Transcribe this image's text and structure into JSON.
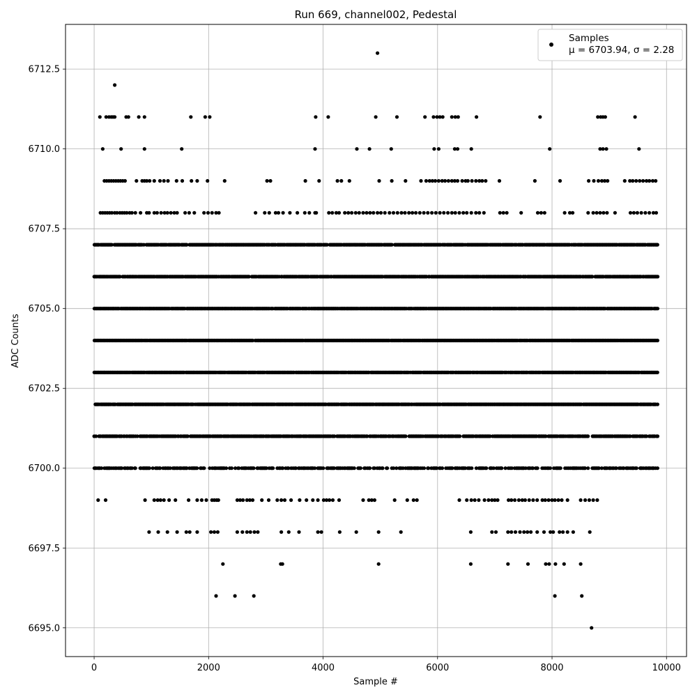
{
  "chart_data": {
    "type": "scatter",
    "title": "Run 669, channel002, Pedestal",
    "xlabel": "Sample #",
    "ylabel": "ADC Counts",
    "xlim": [
      -500,
      10350
    ],
    "ylim": [
      6694.1,
      6713.9
    ],
    "xticks": [
      0,
      2000,
      4000,
      6000,
      8000,
      10000
    ],
    "xtick_labels": [
      "0",
      "2000",
      "4000",
      "6000",
      "8000",
      "10000"
    ],
    "yticks": [
      6695.0,
      6697.5,
      6700.0,
      6702.5,
      6705.0,
      6707.5,
      6710.0,
      6712.5
    ],
    "ytick_labels": [
      "6695.0",
      "6697.5",
      "6700.0",
      "6702.5",
      "6705.0",
      "6707.5",
      "6710.0",
      "6712.5"
    ],
    "grid": true,
    "legend_position": "top-right",
    "legend": {
      "label": "Samples",
      "stats": "μ = 6703.94, σ = 2.28"
    },
    "series": [
      {
        "name": "Samples",
        "color": "#000000",
        "x_range": [
          0,
          9850
        ],
        "n_samples": 9850,
        "points_by_level": [
          {
            "y": 6713,
            "x": [
              4950
            ]
          },
          {
            "y": 6712,
            "x": [
              360
            ]
          },
          {
            "y": 6711,
            "x": [
              100,
              210,
              260,
              300,
              330,
              360,
              560,
              600,
              780,
              880,
              1690,
              1940,
              2020,
              3870,
              4090,
              4920,
              5290,
              5780,
              5930,
              5990,
              6040,
              6090,
              6250,
              6310,
              6360,
              6680,
              7790,
              8800,
              8850,
              8890,
              8930,
              9450
            ]
          },
          {
            "y": 6710,
            "x": [
              150,
              470,
              880,
              1530,
              3860,
              4590,
              4810,
              5190,
              5940,
              6020,
              6300,
              6350,
              6590,
              7960,
              8840,
              8890,
              8950,
              9520
            ]
          },
          {
            "y": 6709,
            "x": [
              180,
              220,
              260,
              300,
              340,
              380,
              420,
              460,
              500,
              540,
              740,
              840,
              880,
              920,
              970,
              1050,
              1150,
              1220,
              1290,
              1440,
              1540,
              1700,
              1800,
              1980,
              2280,
              3020,
              3080,
              3690,
              3930,
              4250,
              4320,
              4460,
              4980,
              5200,
              5440,
              5710,
              5800,
              5860,
              5910,
              5960,
              6020,
              6080,
              6130,
              6190,
              6250,
              6300,
              6350,
              6430,
              6490,
              6530,
              6600,
              6670,
              6730,
              6780,
              6840,
              7080,
              7700,
              8140,
              8640,
              8730,
              8810,
              8870,
              8920,
              8970,
              9270,
              9360,
              9410,
              9470,
              9530,
              9590,
              9650,
              9700,
              9760,
              9810
            ]
          },
          {
            "y": 6708,
            "x": [
              110,
              150,
              190,
              230,
              270,
              310,
              360,
              400,
              450,
              490,
              530,
              570,
              620,
              660,
              720,
              810,
              920,
              960,
              1050,
              1100,
              1170,
              1230,
              1280,
              1340,
              1400,
              1450,
              1590,
              1660,
              1750,
              1920,
              1990,
              2060,
              2130,
              2180,
              2820,
              2980,
              3060,
              3170,
              3220,
              3300,
              3420,
              3550,
              3680,
              3760,
              3860,
              3880,
              4100,
              4160,
              4230,
              4280,
              4380,
              4440,
              4500,
              4570,
              4630,
              4700,
              4760,
              4820,
              4880,
              4950,
              5010,
              5080,
              5160,
              5230,
              5300,
              5370,
              5430,
              5500,
              5560,
              5620,
              5690,
              5760,
              5830,
              5900,
              5970,
              6040,
              6110,
              6180,
              6250,
              6310,
              6380,
              6450,
              6510,
              6590,
              6670,
              6730,
              6810,
              7090,
              7150,
              7210,
              7460,
              7750,
              7810,
              7870,
              8220,
              8310,
              8360,
              8630,
              8720,
              8780,
              8840,
              8900,
              8960,
              9100,
              9370,
              9430,
              9490,
              9560,
              9630,
              9700,
              9770,
              9820
            ]
          }
        ],
        "band_levels": [
          6707,
          6706,
          6705,
          6704,
          6703,
          6702,
          6701,
          6700
        ],
        "sparse_levels": [
          {
            "y": 6699,
            "x": [
              70,
              200,
              890,
              1050,
              1110,
              1160,
              1220,
              1310,
              1420,
              1650,
              1800,
              1880,
              1960,
              2060,
              2100,
              2140,
              2170,
              2500,
              2550,
              2600,
              2670,
              2720,
              2770,
              2930,
              3050,
              3200,
              3270,
              3330,
              3440,
              3590,
              3710,
              3820,
              3910,
              4010,
              4060,
              4110,
              4170,
              4280,
              4700,
              4800,
              4850,
              4900,
              5250,
              5470,
              5580,
              5640,
              6380,
              6510,
              6590,
              6650,
              6720,
              6820,
              6890,
              6950,
              7000,
              7050,
              7240,
              7290,
              7350,
              7420,
              7480,
              7530,
              7600,
              7670,
              7740,
              7830,
              7880,
              7940,
              8000,
              8050,
              8110,
              8170,
              8270,
              8500,
              8580,
              8650,
              8720,
              8790
            ]
          },
          {
            "y": 6698,
            "x": [
              960,
              1120,
              1280,
              1450,
              1610,
              1670,
              1800,
              2040,
              2100,
              2160,
              2500,
              2590,
              2670,
              2730,
              2800,
              2860,
              3270,
              3400,
              3580,
              3910,
              3970,
              4290,
              4580,
              4970,
              5360,
              6580,
              6950,
              7020,
              7230,
              7290,
              7360,
              7440,
              7510,
              7570,
              7630,
              7740,
              7860,
              7970,
              8020,
              8130,
              8190,
              8270,
              8370,
              8660
            ]
          },
          {
            "y": 6697,
            "x": [
              2250,
              3260,
              3290,
              4970,
              6580,
              7230,
              7580,
              7890,
              7950,
              8060,
              8210,
              8500
            ]
          },
          {
            "y": 6696,
            "x": [
              2130,
              2460,
              2790,
              8050,
              8520
            ]
          },
          {
            "y": 6695,
            "x": [
              8690
            ]
          }
        ]
      }
    ]
  }
}
